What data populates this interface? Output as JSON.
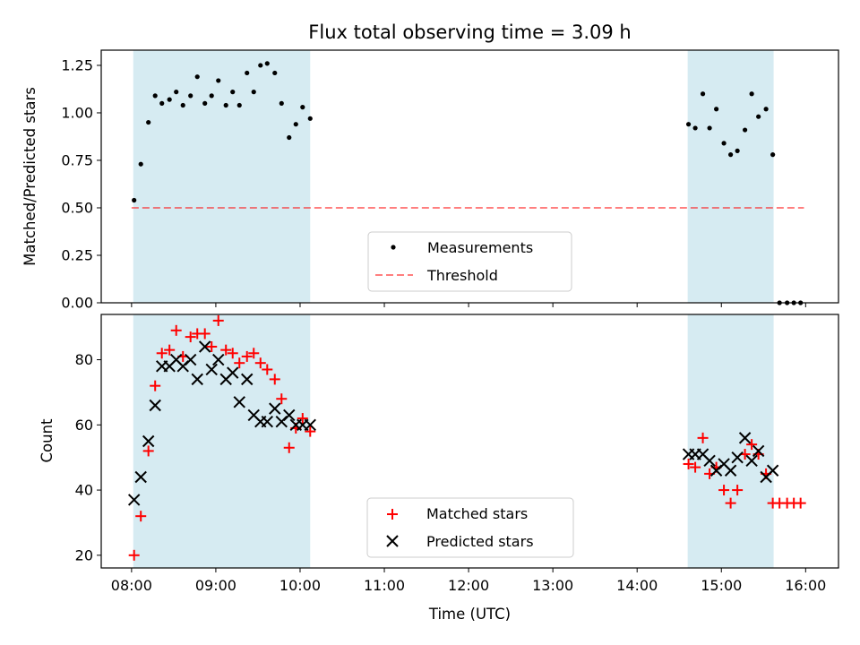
{
  "chart_data": {
    "type": "scatter",
    "title": "Flux total observing time = 3.09 h",
    "x_label": "Time (UTC)",
    "x_range_hours": [
      7.64,
      16.39
    ],
    "x_ticks": [
      {
        "hour": 8,
        "label": "08:00"
      },
      {
        "hour": 9,
        "label": "09:00"
      },
      {
        "hour": 10,
        "label": "10:00"
      },
      {
        "hour": 11,
        "label": "11:00"
      },
      {
        "hour": 12,
        "label": "12:00"
      },
      {
        "hour": 13,
        "label": "13:00"
      },
      {
        "hour": 14,
        "label": "14:00"
      },
      {
        "hour": 15,
        "label": "15:00"
      },
      {
        "hour": 16,
        "label": "16:00"
      }
    ],
    "observing_windows_hours": [
      [
        8.02,
        10.12
      ],
      [
        14.6,
        15.62
      ]
    ],
    "shade_color": "#add8e6",
    "top_panel": {
      "y_label": "Matched/Predicted stars",
      "y_range": [
        0,
        1.33
      ],
      "y_ticks": [
        "0.00",
        "0.25",
        "0.50",
        "0.75",
        "1.00",
        "1.25"
      ],
      "threshold": {
        "name": "Threshold",
        "value": 0.5,
        "x_range_hours": [
          8.0,
          15.98
        ],
        "color": "#ff0000",
        "opacity": 0.5
      },
      "measurements": {
        "name": "Measurements",
        "color": "#000000",
        "x": [
          8.03,
          8.11,
          8.2,
          8.28,
          8.36,
          8.45,
          8.53,
          8.61,
          8.7,
          8.78,
          8.87,
          8.95,
          9.03,
          9.12,
          9.2,
          9.28,
          9.37,
          9.45,
          9.53,
          9.61,
          9.7,
          9.78,
          9.87,
          9.95,
          10.03,
          10.12,
          14.61,
          14.69,
          14.78,
          14.86,
          14.94,
          15.03,
          15.11,
          15.19,
          15.28,
          15.36,
          15.44,
          15.53,
          15.61,
          15.69,
          15.78,
          15.86,
          15.94
        ],
        "y": [
          0.54,
          0.73,
          0.95,
          1.09,
          1.05,
          1.07,
          1.11,
          1.04,
          1.09,
          1.19,
          1.05,
          1.09,
          1.17,
          1.04,
          1.11,
          1.04,
          1.21,
          1.11,
          1.25,
          1.26,
          1.21,
          1.05,
          0.87,
          0.94,
          1.03,
          0.97,
          0.94,
          0.92,
          1.1,
          0.92,
          1.02,
          0.84,
          0.78,
          0.8,
          0.91,
          1.1,
          0.98,
          1.02,
          0.78,
          0.0,
          0.0,
          0.0,
          0.0
        ]
      },
      "legend": [
        {
          "label": "Measurements",
          "marker": "dot"
        },
        {
          "label": "Threshold",
          "marker": "dash"
        }
      ]
    },
    "bottom_panel": {
      "y_label": "Count",
      "y_range": [
        16.1,
        93.9
      ],
      "y_ticks": [
        20,
        40,
        60,
        80
      ],
      "series": [
        {
          "name": "Matched stars",
          "marker": "+",
          "color": "#ff0000",
          "x": [
            8.03,
            8.11,
            8.2,
            8.28,
            8.36,
            8.45,
            8.53,
            8.61,
            8.7,
            8.78,
            8.87,
            8.95,
            9.03,
            9.12,
            9.2,
            9.28,
            9.37,
            9.45,
            9.53,
            9.61,
            9.7,
            9.78,
            9.87,
            9.95,
            10.03,
            10.12,
            14.61,
            14.69,
            14.78,
            14.86,
            14.94,
            15.03,
            15.11,
            15.19,
            15.28,
            15.36,
            15.44,
            15.53,
            15.61,
            15.69,
            15.78,
            15.86,
            15.94
          ],
          "y": [
            20,
            32,
            52,
            72,
            82,
            83,
            89,
            81,
            87,
            88,
            88,
            84,
            92,
            83,
            82,
            79,
            81,
            82,
            79,
            77,
            74,
            68,
            53,
            59,
            62,
            58,
            48,
            47,
            56,
            45,
            47,
            40,
            36,
            40,
            51,
            54,
            51,
            45,
            36,
            36,
            36,
            36,
            36
          ]
        },
        {
          "name": "Predicted stars",
          "marker": "x",
          "color": "#000000",
          "x": [
            8.03,
            8.11,
            8.2,
            8.28,
            8.36,
            8.45,
            8.53,
            8.61,
            8.7,
            8.78,
            8.87,
            8.95,
            9.03,
            9.12,
            9.2,
            9.28,
            9.37,
            9.45,
            9.53,
            9.61,
            9.7,
            9.78,
            9.87,
            9.95,
            10.03,
            10.12,
            14.61,
            14.69,
            14.78,
            14.86,
            14.94,
            15.03,
            15.11,
            15.19,
            15.28,
            15.36,
            15.44,
            15.53,
            15.61
          ],
          "y": [
            37,
            44,
            55,
            66,
            78,
            78,
            80,
            78,
            80,
            74,
            84,
            77,
            80,
            74,
            76,
            67,
            74,
            63,
            61,
            61,
            65,
            61,
            63,
            60,
            60,
            60,
            51,
            51,
            51,
            49,
            46,
            48,
            46,
            50,
            56,
            49,
            52,
            44,
            46
          ]
        }
      ],
      "legend": [
        {
          "label": "Matched stars",
          "marker": "+"
        },
        {
          "label": "Predicted stars",
          "marker": "x"
        }
      ]
    }
  }
}
